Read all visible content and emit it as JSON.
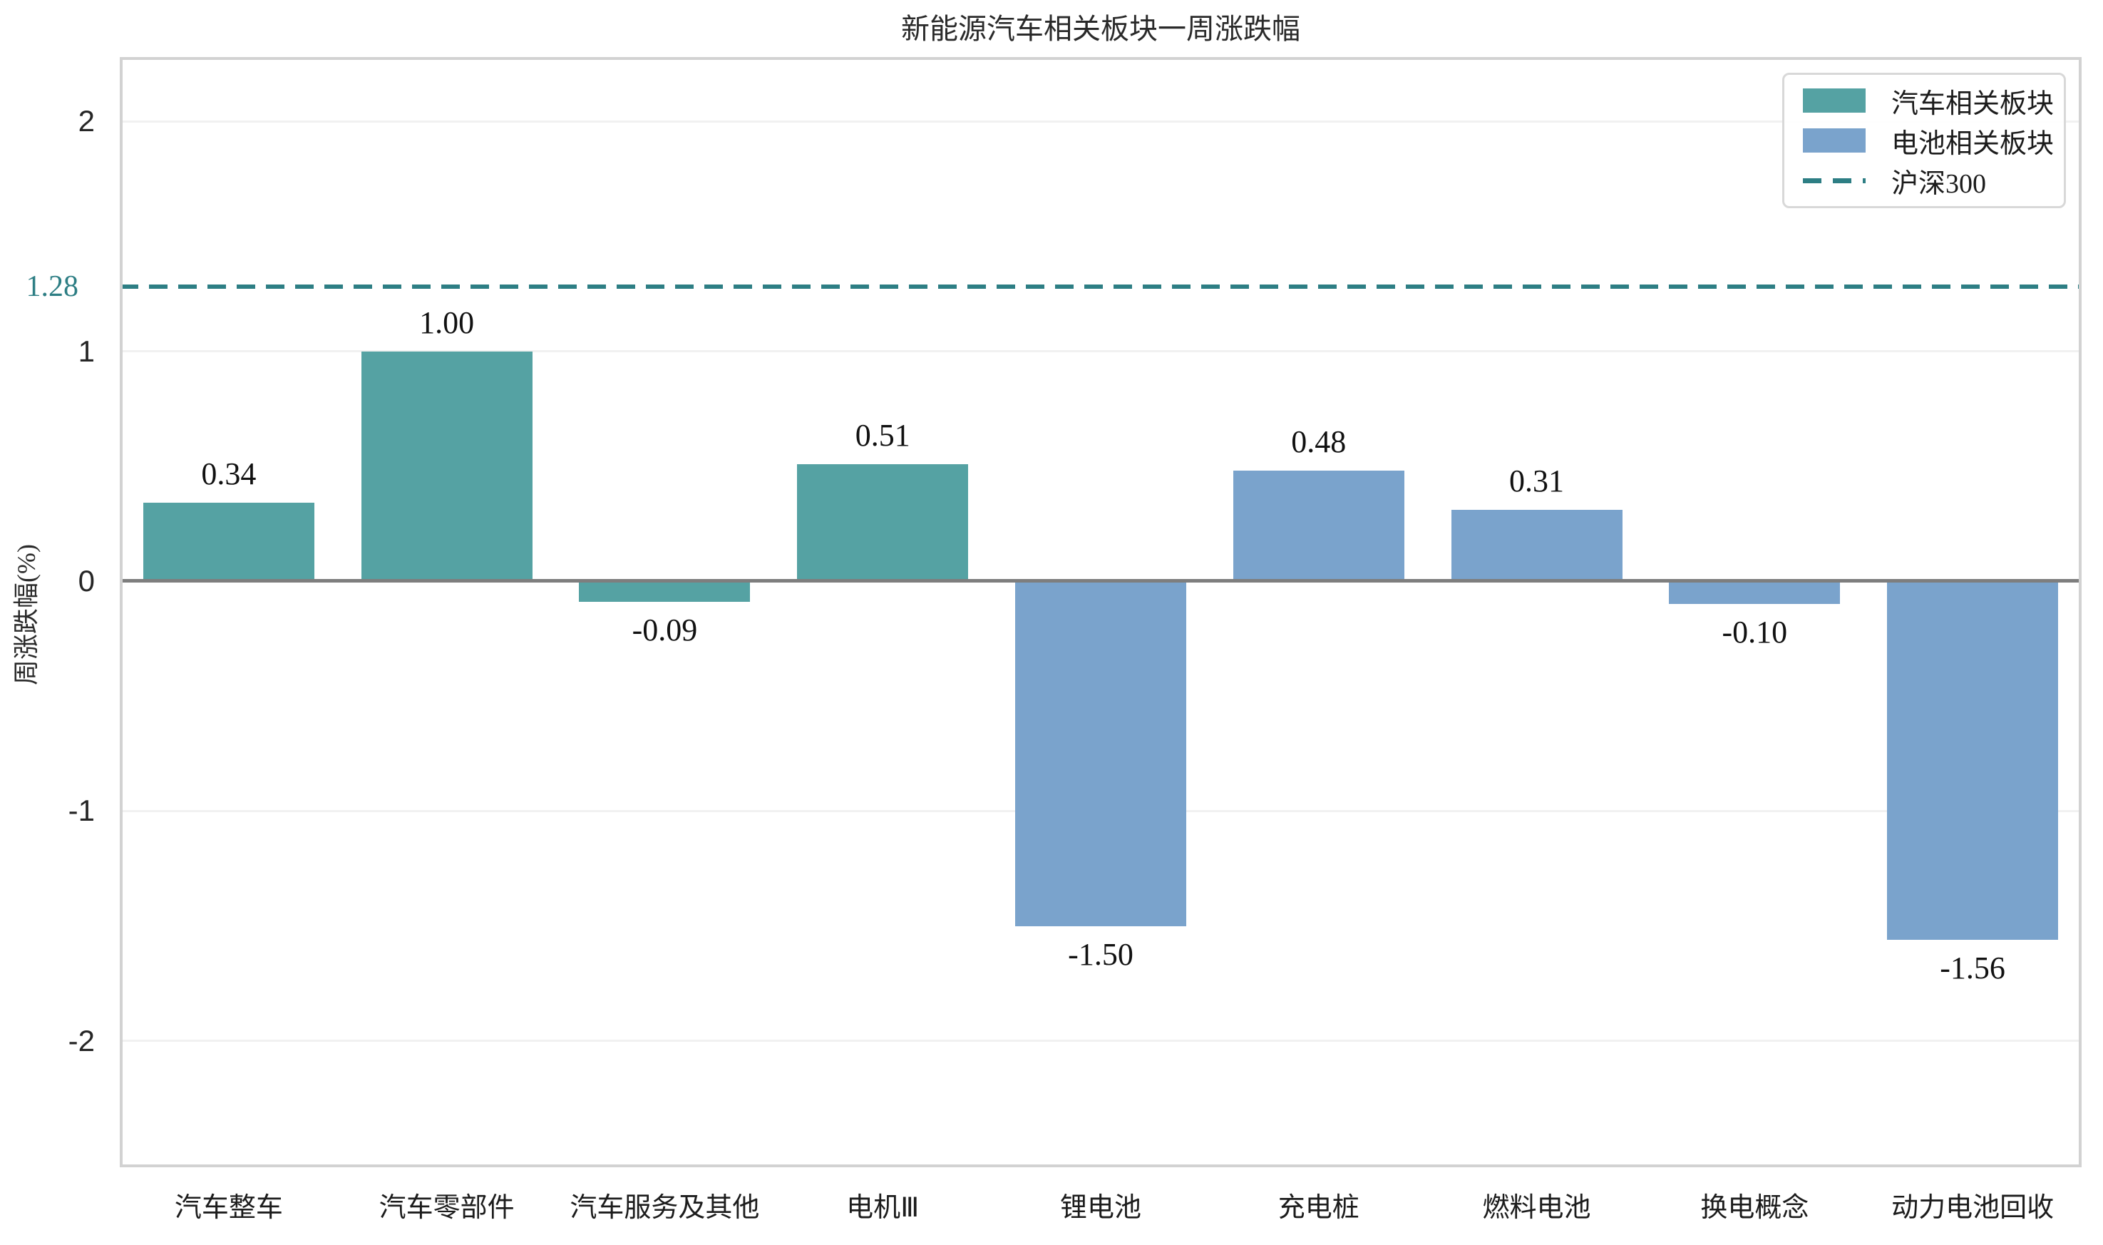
{
  "chart_data": {
    "type": "bar",
    "title": "新能源汽车相关板块一周涨跌幅",
    "xlabel": "",
    "ylabel": "周涨跌幅(%)",
    "categories": [
      "汽车整车",
      "汽车零部件",
      "汽车服务及其他",
      "电机Ⅲ",
      "锂电池",
      "充电桩",
      "燃料电池",
      "换电概念",
      "动力电池回收"
    ],
    "bars": [
      {
        "category": "汽车整车",
        "value": 0.34,
        "label": "0.34",
        "series": "汽车相关板块"
      },
      {
        "category": "汽车零部件",
        "value": 1.0,
        "label": "1.00",
        "series": "汽车相关板块"
      },
      {
        "category": "汽车服务及其他",
        "value": -0.09,
        "label": "-0.09",
        "series": "汽车相关板块"
      },
      {
        "category": "电机Ⅲ",
        "value": 0.51,
        "label": "0.51",
        "series": "汽车相关板块"
      },
      {
        "category": "锂电池",
        "value": -1.5,
        "label": "-1.50",
        "series": "电池相关板块"
      },
      {
        "category": "充电桩",
        "value": 0.48,
        "label": "0.48",
        "series": "电池相关板块"
      },
      {
        "category": "燃料电池",
        "value": 0.31,
        "label": "0.31",
        "series": "电池相关板块"
      },
      {
        "category": "换电概念",
        "value": -0.1,
        "label": "-0.10",
        "series": "电池相关板块"
      },
      {
        "category": "动力电池回收",
        "value": -1.56,
        "label": "-1.56",
        "series": "电池相关板块"
      }
    ],
    "series": [
      {
        "name": "汽车相关板块",
        "color": "#55a2a3",
        "values": [
          0.34,
          1.0,
          -0.09,
          0.51
        ]
      },
      {
        "name": "电池相关板块",
        "color": "#7aa3cc",
        "values": [
          -1.5,
          0.48,
          0.31,
          -0.1,
          -1.56
        ]
      }
    ],
    "reference_line": {
      "name": "沪深300",
      "value": 1.28,
      "label": "1.28",
      "color": "#2d7e84",
      "style": "dashed"
    },
    "yticks": [
      {
        "value": 2,
        "label": "2"
      },
      {
        "value": 1,
        "label": "1"
      },
      {
        "value": 0,
        "label": "0"
      },
      {
        "value": -1,
        "label": "-1"
      },
      {
        "value": -2,
        "label": "-2"
      }
    ],
    "ylim": [
      -2.55,
      2.28
    ],
    "grid": true,
    "bar_width_ratio": 0.785,
    "colors": {
      "zero_line": "#7e7e7e",
      "gridline": "#f1f1f1",
      "plot_border": "#d2d2d2"
    },
    "legend": {
      "position": "upper-right",
      "entries": [
        {
          "label": "汽车相关板块",
          "swatch": "rect",
          "color": "#55a2a3"
        },
        {
          "label": "电池相关板块",
          "swatch": "rect",
          "color": "#7aa3cc"
        },
        {
          "label": "沪深300",
          "swatch": "dashed-line",
          "color": "#2d7e84"
        }
      ]
    }
  }
}
